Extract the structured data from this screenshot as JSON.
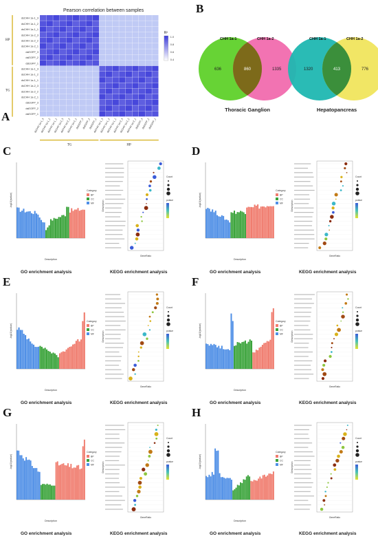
{
  "panels": {
    "A": {
      "letter": "A",
      "title": "Pearson correlation between samples",
      "row_labels": [
        "dsCHH 1a-1_3",
        "dsCHH 1a-1_2",
        "dsCHH 1a-1_1",
        "dsCHH 1a-2_3",
        "dsCHH 1a-2_2",
        "dsCHH 1a-2_1",
        "dsEGFP_3",
        "dsEGFP_2",
        "dsEGFP_1",
        "dsCHH 1a-1_3",
        "dsCHH 1a-1_2",
        "dsCHH 1a-1_1",
        "dsCHH 1a-2_3",
        "dsCHH 1a-2_2",
        "dsCHH 1a-2_1",
        "dsEGFP_3",
        "dsEGFP_2",
        "dsEGFP_1"
      ],
      "group_left": [
        "HP",
        "TG"
      ],
      "group_bottom": [
        "TG",
        "HP"
      ],
      "colorbar_title": "R²",
      "colorbar_ticks": [
        "1.0",
        "0.8",
        "0.6",
        "0.4"
      ]
    },
    "B": {
      "letter": "B",
      "venns": [
        {
          "title": "Thoracic Ganglion",
          "left_label": "CHH 1a-1",
          "right_label": "CHH 1a-2",
          "left_only": "636",
          "both": "860",
          "right_only": "1335",
          "left_color": "#5fd12a",
          "right_color": "#f05aa5"
        },
        {
          "title": "Hepatopancreas",
          "left_label": "CHH 1a-1",
          "right_label": "CHH 1a-2",
          "left_only": "1320",
          "both": "413",
          "right_only": "776",
          "left_color": "#1fb7b1",
          "right_color": "#eee24a"
        }
      ]
    },
    "rows": [
      {
        "left": "C",
        "right": "D"
      },
      {
        "left": "E",
        "right": "F"
      },
      {
        "left": "G",
        "right": "H"
      }
    ],
    "go_caption": "GO enrichment analysis",
    "kegg_caption": "KEGG enrichment analysis",
    "go_ylabel": "-log10(pvalue)",
    "go_xlabel": "Description",
    "kegg_ylabel": "Description",
    "kegg_xlabel": "GeneRatio",
    "category_title": "Category",
    "categories": [
      "BP",
      "CC",
      "MF"
    ],
    "kegg_legend": {
      "pvalue": "pvalue",
      "count": "Count"
    }
  },
  "colors": {
    "bp": "#f07c6e",
    "cc": "#3aa33a",
    "mf": "#4f8fe6",
    "heat_high": "#3c3cd9",
    "heat_low": "#b9c4f4",
    "ven_center_tg": "#7d6a1a",
    "ven_center_hp": "#3b8f3b"
  }
}
